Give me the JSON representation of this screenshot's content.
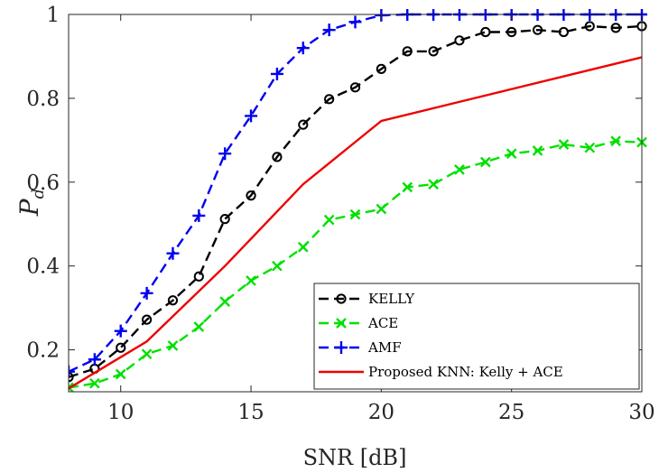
{
  "chart_data": {
    "type": "line",
    "title": "",
    "xlabel": "SNR [dB]",
    "ylabel_main": "P",
    "ylabel_sub": "d",
    "xlim": [
      8,
      30
    ],
    "ylim": [
      0.1,
      1.0
    ],
    "xticks": [
      10,
      15,
      20,
      25,
      30
    ],
    "yticks": [
      0.2,
      0.4,
      0.6,
      0.8,
      1
    ],
    "ytick_labels": [
      "0.2",
      "0.4",
      "0.6",
      "0.8",
      "1"
    ],
    "grid": false,
    "legend_position": "bottom-right",
    "series": [
      {
        "name": "KELLY",
        "color": "#000000",
        "line_style": "dashed",
        "marker": "circle",
        "x": [
          8,
          9,
          10,
          11,
          12,
          13,
          14,
          15,
          16,
          17,
          18,
          19,
          20,
          21,
          22,
          23,
          24,
          25,
          26,
          27,
          28,
          29,
          30
        ],
        "y": [
          0.135,
          0.155,
          0.205,
          0.272,
          0.318,
          0.375,
          0.512,
          0.568,
          0.66,
          0.737,
          0.798,
          0.826,
          0.87,
          0.912,
          0.912,
          0.938,
          0.958,
          0.958,
          0.963,
          0.958,
          0.972,
          0.968,
          0.972
        ]
      },
      {
        "name": "ACE",
        "color": "#00e000",
        "line_style": "dashed",
        "marker": "x",
        "x": [
          8,
          9,
          10,
          11,
          12,
          13,
          14,
          15,
          16,
          17,
          18,
          19,
          20,
          21,
          22,
          23,
          24,
          25,
          26,
          27,
          28,
          29,
          30
        ],
        "y": [
          0.11,
          0.12,
          0.142,
          0.19,
          0.21,
          0.255,
          0.315,
          0.365,
          0.4,
          0.445,
          0.51,
          0.523,
          0.536,
          0.588,
          0.595,
          0.63,
          0.648,
          0.668,
          0.675,
          0.69,
          0.682,
          0.698,
          0.695
        ]
      },
      {
        "name": "AMF",
        "color": "#0000ee",
        "line_style": "dashed",
        "marker": "plus",
        "x": [
          8,
          9,
          10,
          11,
          12,
          13,
          14,
          15,
          16,
          17,
          18,
          19,
          20,
          21,
          22,
          23,
          24,
          25,
          26,
          27,
          28,
          29,
          30
        ],
        "y": [
          0.148,
          0.177,
          0.245,
          0.335,
          0.43,
          0.52,
          0.668,
          0.758,
          0.858,
          0.92,
          0.963,
          0.982,
          0.998,
          1.0,
          1.0,
          1.0,
          1.0,
          1.0,
          1.0,
          1.0,
          1.0,
          1.0,
          1.0
        ]
      },
      {
        "name": "Proposed KNN: Kelly + ACE",
        "color": "#ee0000",
        "line_style": "solid",
        "marker": "none",
        "x": [
          8,
          11,
          14,
          17,
          20,
          30
        ],
        "y": [
          0.108,
          0.22,
          0.4,
          0.595,
          0.746,
          0.898
        ]
      }
    ]
  }
}
